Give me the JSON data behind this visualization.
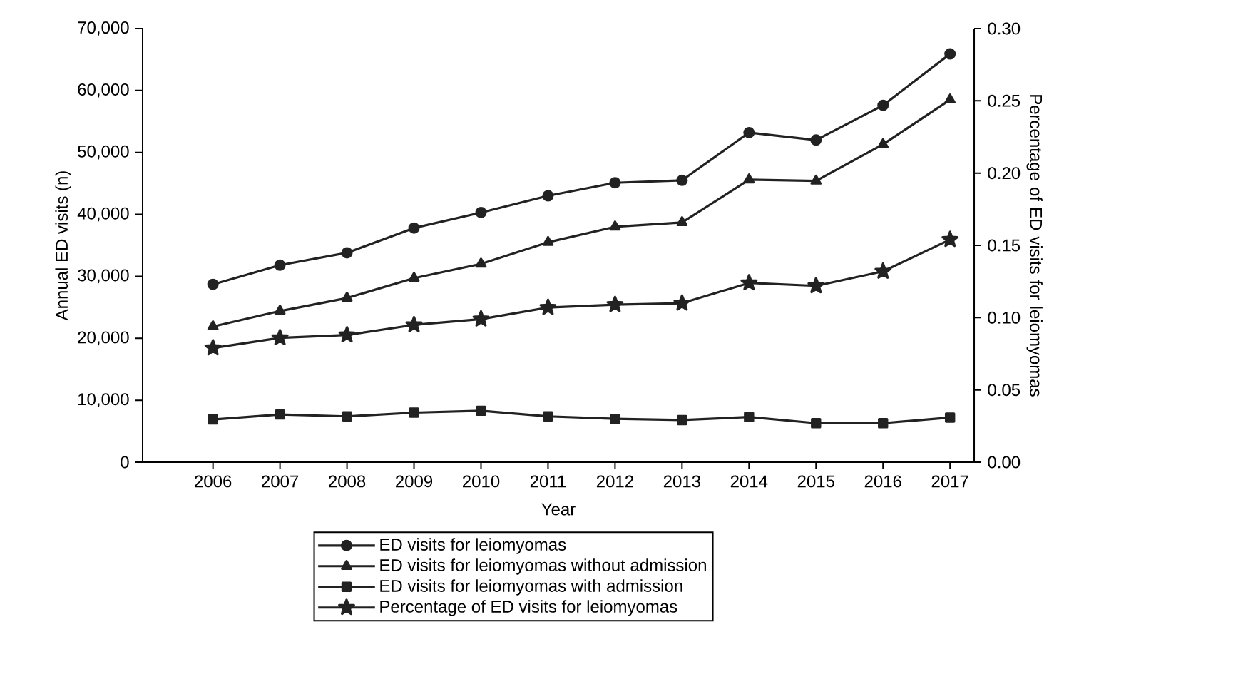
{
  "chart_data": {
    "type": "line",
    "xlabel": "Year",
    "ylabel": "Annual ED visits (n)",
    "y2label": "Percentage of ED visits for leiomyomas",
    "categories": [
      "2006",
      "2007",
      "2008",
      "2009",
      "2010",
      "2011",
      "2012",
      "2013",
      "2014",
      "2015",
      "2016",
      "2017"
    ],
    "series": [
      {
        "name": "ED visits for leiomyomas",
        "color": "#222222",
        "marker": "circle",
        "values": [
          28700,
          31800,
          33800,
          37800,
          40300,
          43000,
          45100,
          45500,
          53200,
          52000,
          57600,
          65900
        ]
      },
      {
        "name": "ED visits for leiomyomas without admission",
        "color": "#222222",
        "marker": "triangle",
        "values": [
          21900,
          24400,
          26500,
          29700,
          32000,
          35500,
          38000,
          38700,
          45600,
          45400,
          51300,
          58500
        ]
      },
      {
        "name": "ED visits for leiomyomas with admission",
        "color": "#222222",
        "marker": "square",
        "values": [
          6900,
          7700,
          7400,
          8000,
          8300,
          7400,
          7000,
          6800,
          7300,
          6300,
          6300,
          7200
        ]
      },
      {
        "name": "Percentage of ED visits for leiomyomas",
        "color": "#222222",
        "marker": "star",
        "axis": "y2",
        "values": [
          0.079,
          0.086,
          0.088,
          0.095,
          0.099,
          0.107,
          0.109,
          0.11,
          0.124,
          0.122,
          0.132,
          0.154
        ]
      }
    ],
    "ylim": [
      0,
      70000
    ],
    "yticks": [
      0,
      {
        "value": 10000,
        "label": "10,000"
      },
      {
        "value": 20000,
        "label": "20,000"
      },
      {
        "value": 30000,
        "label": "30,000"
      },
      {
        "value": 40000,
        "label": "40,000"
      },
      {
        "value": 50000,
        "label": "50,000"
      },
      {
        "value": 60000,
        "label": "60,000"
      },
      {
        "value": 70000,
        "label": "70,000"
      }
    ],
    "y2lim": [
      0,
      0.3
    ],
    "y2ticks": [
      {
        "value": 0,
        "label": "0.00"
      },
      {
        "value": 0.05,
        "label": "0.05"
      },
      {
        "value": 0.1,
        "label": "0.10"
      },
      {
        "value": 0.15,
        "label": "0.15"
      },
      {
        "value": 0.2,
        "label": "0.20"
      },
      {
        "value": 0.25,
        "label": "0.25"
      },
      {
        "value": 0.3,
        "label": "0.30"
      }
    ],
    "grid": false,
    "legend": "bottom",
    "line_style": "solid"
  }
}
